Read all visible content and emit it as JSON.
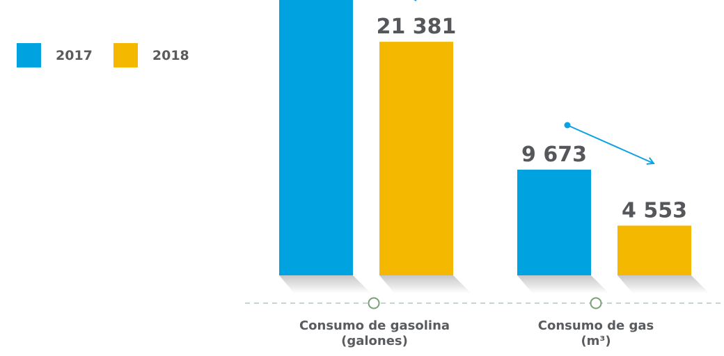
{
  "colors": {
    "series_2017": "#00a3e0",
    "series_2018": "#f5b800",
    "text": "#595b5e",
    "value_label": "#55575a",
    "axis_dash": "#9dbfb6",
    "axis_marker": "#7aa07a",
    "trend_arrow": "#0aa2e0"
  },
  "legend": [
    {
      "label": "2017",
      "color_key": "series_2017"
    },
    {
      "label": "2018",
      "color_key": "series_2018"
    }
  ],
  "categories": [
    {
      "line1": "Consumo de gasolina",
      "line2": "(galones)"
    },
    {
      "line1": "Consumo de gas",
      "line2": "(m³)"
    }
  ],
  "value_labels": {
    "gasolina_2018": "21 381",
    "gas_2017": "9 673",
    "gas_2018": "4 553"
  },
  "chart_data": {
    "type": "bar",
    "categories": [
      "Consumo de gasolina (galones)",
      "Consumo de gas (m³)"
    ],
    "series": [
      {
        "name": "2017",
        "values": [
          null,
          9673
        ]
      },
      {
        "name": "2018",
        "values": [
          21381,
          4553
        ]
      }
    ],
    "legend_position": "top-left",
    "grid": false,
    "notes": "Gasolina 2017 bar extends beyond top edge; its value is not visible."
  }
}
